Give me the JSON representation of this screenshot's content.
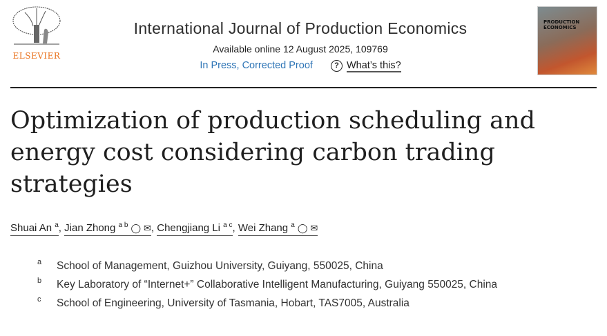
{
  "publisher": {
    "name": "ELSEVIER",
    "logo_icon": "elsevier-tree-logo"
  },
  "journal": {
    "title": "International Journal of Production Economics",
    "available": "Available online 12 August 2025, 109769",
    "status": "In Press, Corrected Proof",
    "help_link": "What’s this?",
    "help_icon": "?",
    "cover_text": "PRODUCTION ECONOMICS"
  },
  "article": {
    "title": "Optimization of production scheduling and energy cost considering carbon trading strategies"
  },
  "authors": [
    {
      "name": "Shuai An",
      "sup": "a",
      "icons": ""
    },
    {
      "name": "Jian Zhong",
      "sup": "a b",
      "icons": "person mail"
    },
    {
      "name": "Chengjiang Li",
      "sup": "a c",
      "icons": ""
    },
    {
      "name": "Wei Zhang",
      "sup": "a",
      "icons": "person mail"
    }
  ],
  "separator": ",",
  "affiliations": [
    {
      "label": "a",
      "text": "School of Management, Guizhou University, Guiyang, 550025, China"
    },
    {
      "label": "b",
      "text": "Key Laboratory of “Internet+” Collaborative Intelligent Manufacturing, Guiyang 550025, China"
    },
    {
      "label": "c",
      "text": "School of Engineering, University of Tasmania, Hobart, TAS7005, Australia"
    }
  ]
}
